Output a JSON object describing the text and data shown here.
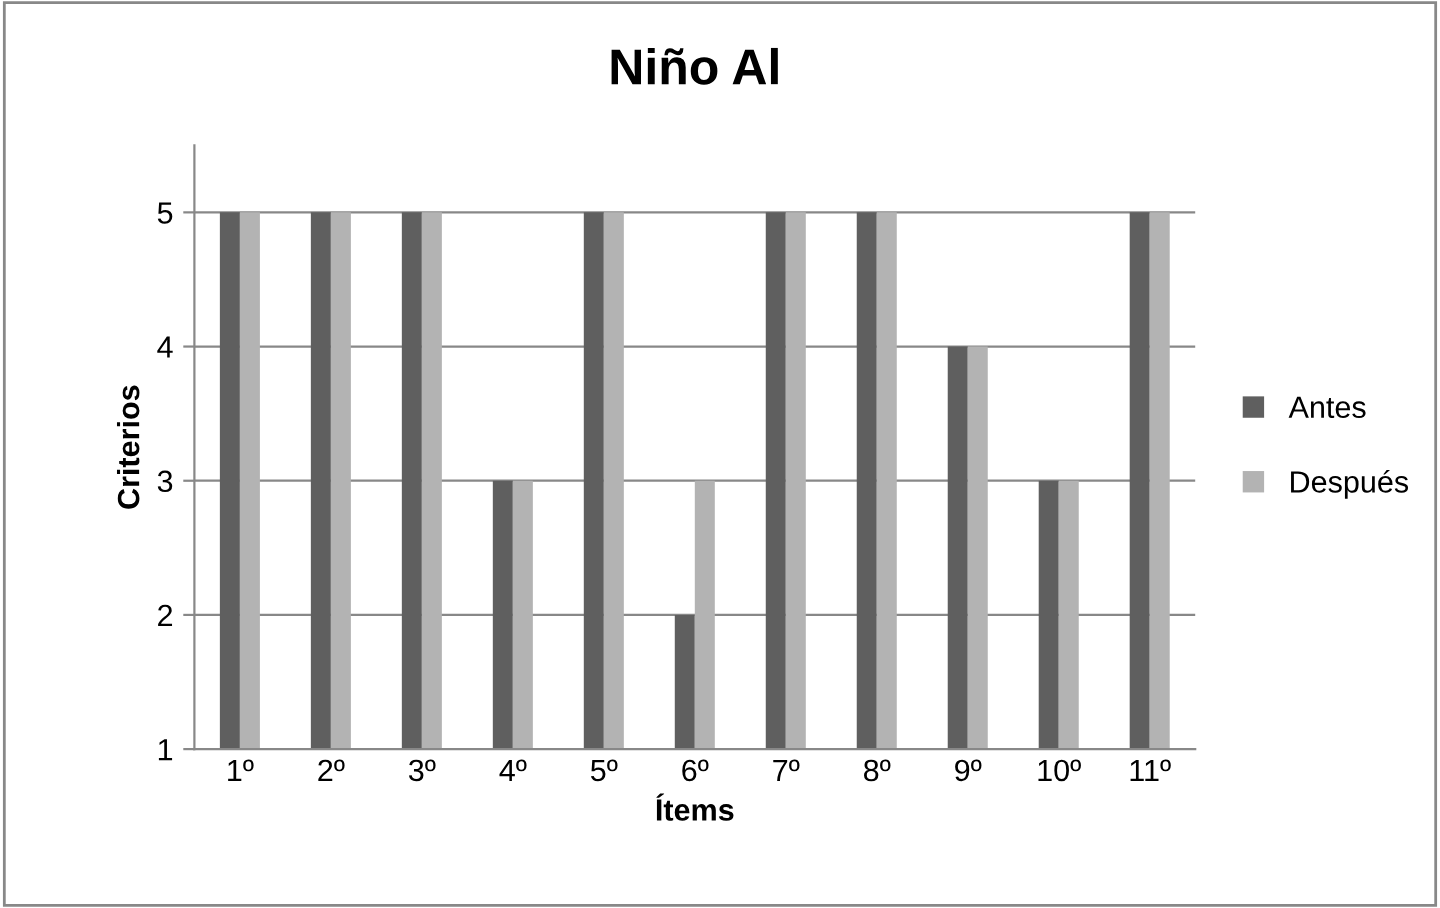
{
  "chart_data": {
    "type": "bar",
    "title": "Niño Al",
    "xlabel": "Ítems",
    "ylabel": "Criterios",
    "categories": [
      "1º",
      "2º",
      "3º",
      "4º",
      "5º",
      "6º",
      "7º",
      "8º",
      "9º",
      "10º",
      "11º"
    ],
    "series": [
      {
        "name": "Antes",
        "color": "#5f5f5f",
        "values": [
          5,
          5,
          5,
          3,
          5,
          2,
          5,
          5,
          4,
          3,
          5
        ]
      },
      {
        "name": "Después",
        "color": "#b3b3b3",
        "values": [
          5,
          5,
          5,
          3,
          5,
          3,
          5,
          5,
          4,
          3,
          5
        ]
      }
    ],
    "ylim": [
      1,
      5.5
    ],
    "yticks": [
      1,
      2,
      3,
      4,
      5
    ],
    "grid": "y",
    "legend": "right"
  }
}
